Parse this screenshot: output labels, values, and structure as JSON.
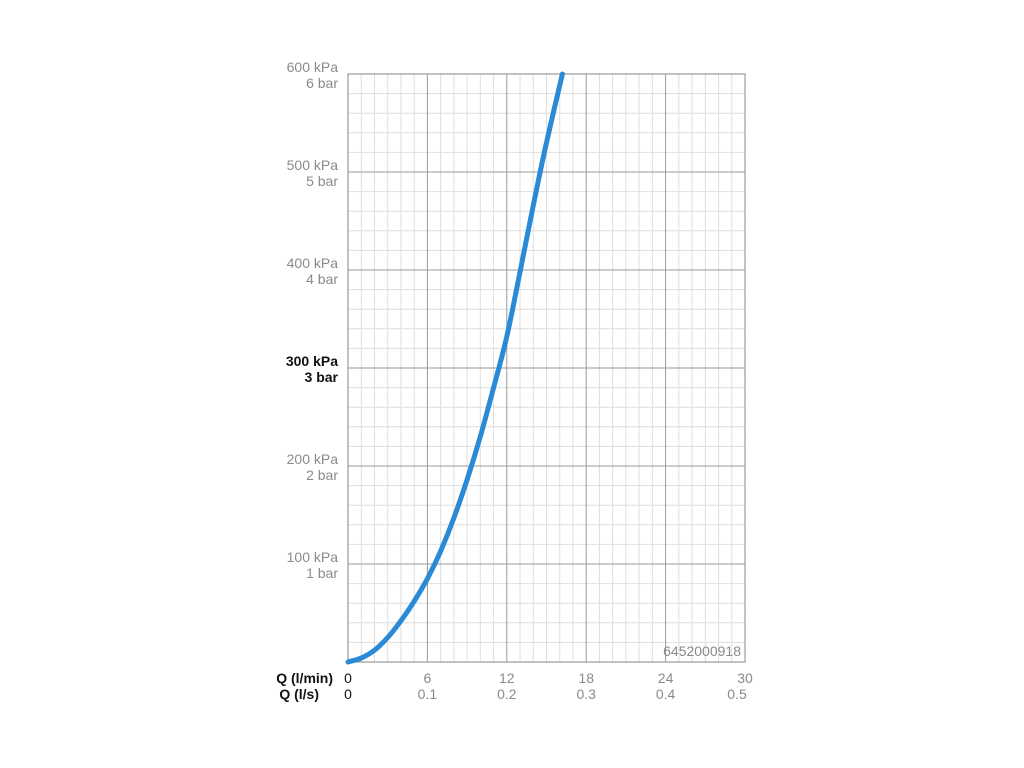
{
  "chart_data": {
    "type": "line",
    "title": "",
    "product_code": "6452000918",
    "x_axes": [
      {
        "label": "Q (l/min)",
        "ticks": [
          "0",
          "6",
          "12",
          "18",
          "24",
          "30"
        ],
        "range": [
          0,
          30
        ]
      },
      {
        "label": "Q (l/s)",
        "ticks": [
          "0",
          "0.1",
          "0.2",
          "0.3",
          "0.4",
          "0.5"
        ],
        "range": [
          0,
          0.5
        ]
      }
    ],
    "y_ticks": [
      {
        "value": 600,
        "kpa": "600 kPa",
        "bar": "6 bar",
        "emphasis": false
      },
      {
        "value": 500,
        "kpa": "500 kPa",
        "bar": "5 bar",
        "emphasis": false
      },
      {
        "value": 400,
        "kpa": "400 kPa",
        "bar": "4 bar",
        "emphasis": false
      },
      {
        "value": 300,
        "kpa": "300 kPa",
        "bar": "3 bar",
        "emphasis": true
      },
      {
        "value": 200,
        "kpa": "200 kPa",
        "bar": "2 bar",
        "emphasis": false
      },
      {
        "value": 100,
        "kpa": "100 kPa",
        "bar": "1 bar",
        "emphasis": false
      }
    ],
    "ylim": [
      0,
      600
    ],
    "xlim": [
      0,
      30
    ],
    "grid": true,
    "series": [
      {
        "color": "#2a8ad6",
        "x": [
          0,
          1,
          2,
          3,
          4,
          5,
          6,
          7,
          8,
          9,
          10,
          11,
          12,
          13,
          14,
          15,
          16.2
        ],
        "y": [
          0,
          4,
          12,
          25,
          42,
          62,
          85,
          113,
          147,
          186,
          230,
          280,
          332,
          398,
          466,
          530,
          600
        ]
      }
    ],
    "colors": {
      "curve": "#2a8ad6",
      "major_grid": "#9a9a9a",
      "minor_grid": "#dedede",
      "text_muted": "#8a8a8a",
      "text_strong": "#111111"
    }
  }
}
